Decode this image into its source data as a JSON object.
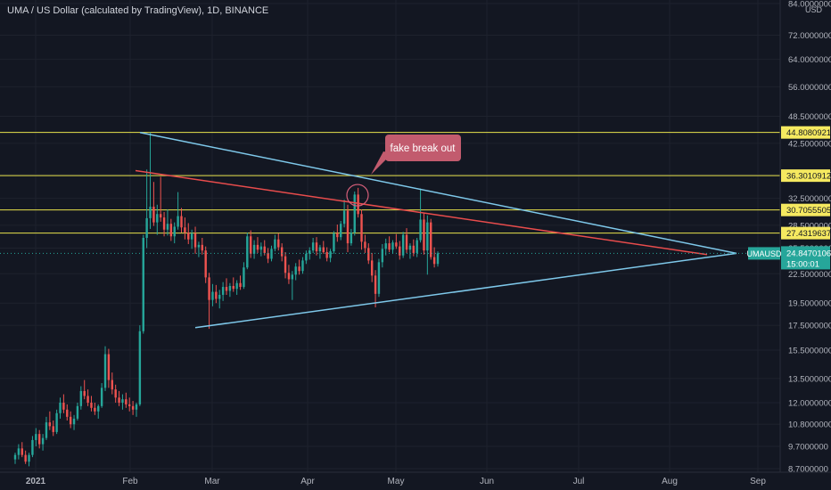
{
  "chart_data": {
    "type": "candlestick",
    "title": "UMA / US Dollar (calculated by TradingView), 1D, BINANCE",
    "currency": "USD",
    "y_scale": "log",
    "ylim": [
      8.7,
      84.0
    ],
    "y_ticks": [
      "84.0000000",
      "72.0000000",
      "64.0000000",
      "56.0000000",
      "48.5000000",
      "42.5000000",
      "36.5000000",
      "32.5000000",
      "28.5000000",
      "25.5000000",
      "22.5000000",
      "19.5000000",
      "17.5000000",
      "15.5000000",
      "13.5000000",
      "12.0000000",
      "10.8000000",
      "9.7000000",
      "8.7000000"
    ],
    "x_ticks": [
      "2021",
      "Feb",
      "Mar",
      "Apr",
      "May",
      "Jun",
      "Jul",
      "Aug",
      "Sep"
    ],
    "horizontal_levels": [
      44.8080921,
      36.3010912,
      30.7055505,
      27.4319637
    ],
    "current_price": {
      "symbol": "UMAUSD",
      "value": "24.8470106",
      "countdown": "15:00:01"
    },
    "annotation": "fake break out",
    "candles": [
      [
        9.1,
        9.4,
        8.9,
        9.3
      ],
      [
        9.3,
        9.8,
        9.1,
        9.6
      ],
      [
        9.6,
        9.9,
        9.2,
        9.3
      ],
      [
        9.3,
        9.5,
        8.9,
        9.0
      ],
      [
        9.0,
        9.4,
        8.8,
        9.3
      ],
      [
        9.3,
        10.2,
        9.2,
        10.0
      ],
      [
        10.0,
        10.6,
        9.7,
        10.3
      ],
      [
        10.3,
        10.5,
        9.6,
        9.8
      ],
      [
        9.8,
        10.3,
        9.5,
        10.1
      ],
      [
        10.1,
        11.2,
        10.0,
        10.9
      ],
      [
        10.9,
        11.5,
        10.5,
        10.7
      ],
      [
        10.7,
        11.0,
        10.2,
        10.4
      ],
      [
        10.4,
        11.6,
        10.3,
        11.4
      ],
      [
        11.4,
        12.3,
        11.1,
        12.0
      ],
      [
        12.0,
        12.5,
        11.4,
        11.6
      ],
      [
        11.6,
        11.9,
        11.0,
        11.2
      ],
      [
        11.2,
        11.5,
        10.6,
        10.8
      ],
      [
        10.8,
        11.3,
        10.5,
        11.1
      ],
      [
        11.1,
        12.0,
        11.0,
        11.8
      ],
      [
        11.8,
        13.0,
        11.6,
        12.7
      ],
      [
        12.7,
        13.4,
        12.2,
        12.4
      ],
      [
        12.4,
        12.8,
        11.8,
        12.0
      ],
      [
        12.0,
        12.4,
        11.5,
        11.7
      ],
      [
        11.7,
        12.0,
        11.3,
        11.5
      ],
      [
        11.5,
        11.9,
        11.1,
        11.8
      ],
      [
        11.8,
        13.2,
        11.7,
        12.9
      ],
      [
        12.9,
        15.8,
        12.7,
        15.2
      ],
      [
        15.2,
        15.6,
        12.9,
        13.4
      ],
      [
        13.4,
        13.9,
        12.5,
        12.8
      ],
      [
        12.8,
        13.1,
        12.0,
        12.3
      ],
      [
        12.3,
        12.7,
        11.8,
        12.0
      ],
      [
        12.0,
        12.5,
        11.6,
        12.2
      ],
      [
        12.2,
        12.6,
        11.7,
        11.9
      ],
      [
        11.9,
        12.3,
        11.5,
        11.8
      ],
      [
        11.8,
        12.1,
        11.3,
        11.6
      ],
      [
        11.6,
        12.0,
        11.2,
        11.9
      ],
      [
        11.9,
        17.5,
        11.8,
        17.0
      ],
      [
        17.0,
        27.2,
        16.8,
        26.8
      ],
      [
        26.8,
        37.4,
        25.5,
        29.5
      ],
      [
        29.5,
        44.8,
        28.0,
        31.2
      ],
      [
        31.2,
        35.2,
        28.4,
        28.9
      ],
      [
        28.9,
        31.5,
        27.2,
        30.1
      ],
      [
        30.1,
        36.1,
        29.0,
        29.6
      ],
      [
        29.6,
        30.4,
        27.0,
        27.9
      ],
      [
        27.9,
        30.8,
        27.1,
        28.7
      ],
      [
        28.7,
        29.4,
        26.4,
        27.0
      ],
      [
        27.0,
        28.9,
        26.1,
        28.3
      ],
      [
        28.3,
        33.5,
        27.9,
        29.8
      ],
      [
        29.8,
        31.0,
        27.5,
        28.2
      ],
      [
        28.2,
        29.6,
        26.6,
        27.5
      ],
      [
        27.5,
        28.8,
        26.0,
        26.6
      ],
      [
        26.6,
        27.9,
        25.4,
        27.4
      ],
      [
        27.4,
        28.3,
        24.8,
        25.6
      ],
      [
        25.6,
        26.3,
        24.4,
        25.9
      ],
      [
        25.9,
        26.8,
        24.7,
        25.2
      ],
      [
        25.2,
        25.7,
        21.5,
        22.1
      ],
      [
        22.1,
        22.6,
        17.2,
        19.8
      ],
      [
        19.8,
        21.4,
        19.2,
        20.6
      ],
      [
        20.6,
        21.3,
        19.5,
        19.9
      ],
      [
        19.9,
        20.8,
        19.0,
        20.3
      ],
      [
        20.3,
        21.6,
        19.7,
        21.1
      ],
      [
        21.1,
        22.0,
        20.3,
        20.7
      ],
      [
        20.7,
        21.5,
        20.1,
        21.2
      ],
      [
        21.2,
        22.1,
        20.6,
        20.9
      ],
      [
        20.9,
        21.8,
        20.3,
        21.5
      ],
      [
        21.5,
        22.3,
        20.8,
        21.1
      ],
      [
        21.1,
        23.8,
        20.9,
        23.2
      ],
      [
        23.2,
        27.5,
        23.0,
        27.0
      ],
      [
        27.0,
        27.8,
        24.3,
        24.8
      ],
      [
        24.8,
        26.5,
        24.2,
        25.9
      ],
      [
        25.9,
        26.9,
        24.9,
        25.3
      ],
      [
        25.3,
        26.2,
        24.5,
        25.7
      ],
      [
        25.7,
        26.5,
        24.6,
        24.9
      ],
      [
        24.9,
        25.5,
        23.7,
        24.2
      ],
      [
        24.2,
        25.8,
        23.9,
        25.4
      ],
      [
        25.4,
        27.2,
        25.1,
        26.6
      ],
      [
        26.6,
        27.4,
        25.2,
        25.6
      ],
      [
        25.6,
        26.1,
        23.9,
        24.5
      ],
      [
        24.5,
        25.0,
        22.0,
        22.6
      ],
      [
        22.6,
        23.5,
        21.4,
        21.9
      ],
      [
        21.9,
        22.8,
        19.8,
        22.4
      ],
      [
        22.4,
        23.7,
        21.8,
        23.3
      ],
      [
        23.3,
        24.1,
        22.4,
        22.8
      ],
      [
        22.8,
        24.4,
        22.5,
        24.0
      ],
      [
        24.0,
        25.2,
        23.6,
        24.8
      ],
      [
        24.8,
        25.6,
        24.1,
        25.2
      ],
      [
        25.2,
        26.8,
        24.9,
        26.2
      ],
      [
        26.2,
        26.9,
        24.6,
        25.1
      ],
      [
        25.1,
        25.9,
        24.2,
        25.6
      ],
      [
        25.6,
        26.4,
        24.8,
        25.0
      ],
      [
        25.0,
        25.6,
        23.9,
        24.3
      ],
      [
        24.3,
        25.4,
        23.8,
        25.1
      ],
      [
        25.1,
        27.7,
        24.8,
        27.4
      ],
      [
        27.4,
        28.6,
        26.3,
        26.9
      ],
      [
        26.9,
        29.1,
        26.5,
        28.7
      ],
      [
        28.7,
        32.3,
        28.2,
        30.6
      ],
      [
        30.6,
        31.5,
        25.0,
        26.1
      ],
      [
        26.1,
        28.0,
        25.8,
        27.5
      ],
      [
        27.5,
        33.6,
        27.1,
        33.1
      ],
      [
        33.1,
        34.2,
        29.6,
        30.1
      ],
      [
        30.1,
        30.8,
        25.3,
        26.3
      ],
      [
        26.3,
        27.2,
        24.9,
        25.5
      ],
      [
        25.5,
        26.1,
        23.6,
        24.0
      ],
      [
        24.0,
        24.9,
        21.6,
        22.3
      ],
      [
        22.3,
        22.9,
        19.1,
        20.4
      ],
      [
        20.4,
        24.2,
        20.1,
        23.8
      ],
      [
        23.8,
        26.0,
        23.2,
        25.4
      ],
      [
        25.4,
        26.7,
        24.6,
        26.1
      ],
      [
        26.1,
        27.0,
        25.0,
        25.3
      ],
      [
        25.3,
        26.5,
        24.8,
        26.2
      ],
      [
        26.2,
        27.3,
        25.4,
        25.7
      ],
      [
        25.7,
        26.4,
        24.1,
        24.6
      ],
      [
        24.6,
        27.6,
        24.3,
        27.2
      ],
      [
        27.2,
        28.1,
        24.9,
        25.3
      ],
      [
        25.3,
        26.1,
        24.2,
        25.8
      ],
      [
        25.8,
        26.6,
        24.5,
        24.9
      ],
      [
        24.9,
        26.8,
        24.4,
        26.5
      ],
      [
        26.5,
        34.1,
        26.2,
        29.3
      ],
      [
        29.3,
        30.2,
        24.7,
        25.2
      ],
      [
        25.2,
        29.9,
        22.4,
        28.9
      ],
      [
        28.9,
        29.4,
        24.1,
        24.4
      ],
      [
        24.4,
        25.6,
        23.2,
        23.6
      ],
      [
        23.6,
        25.1,
        23.3,
        24.85
      ]
    ]
  }
}
